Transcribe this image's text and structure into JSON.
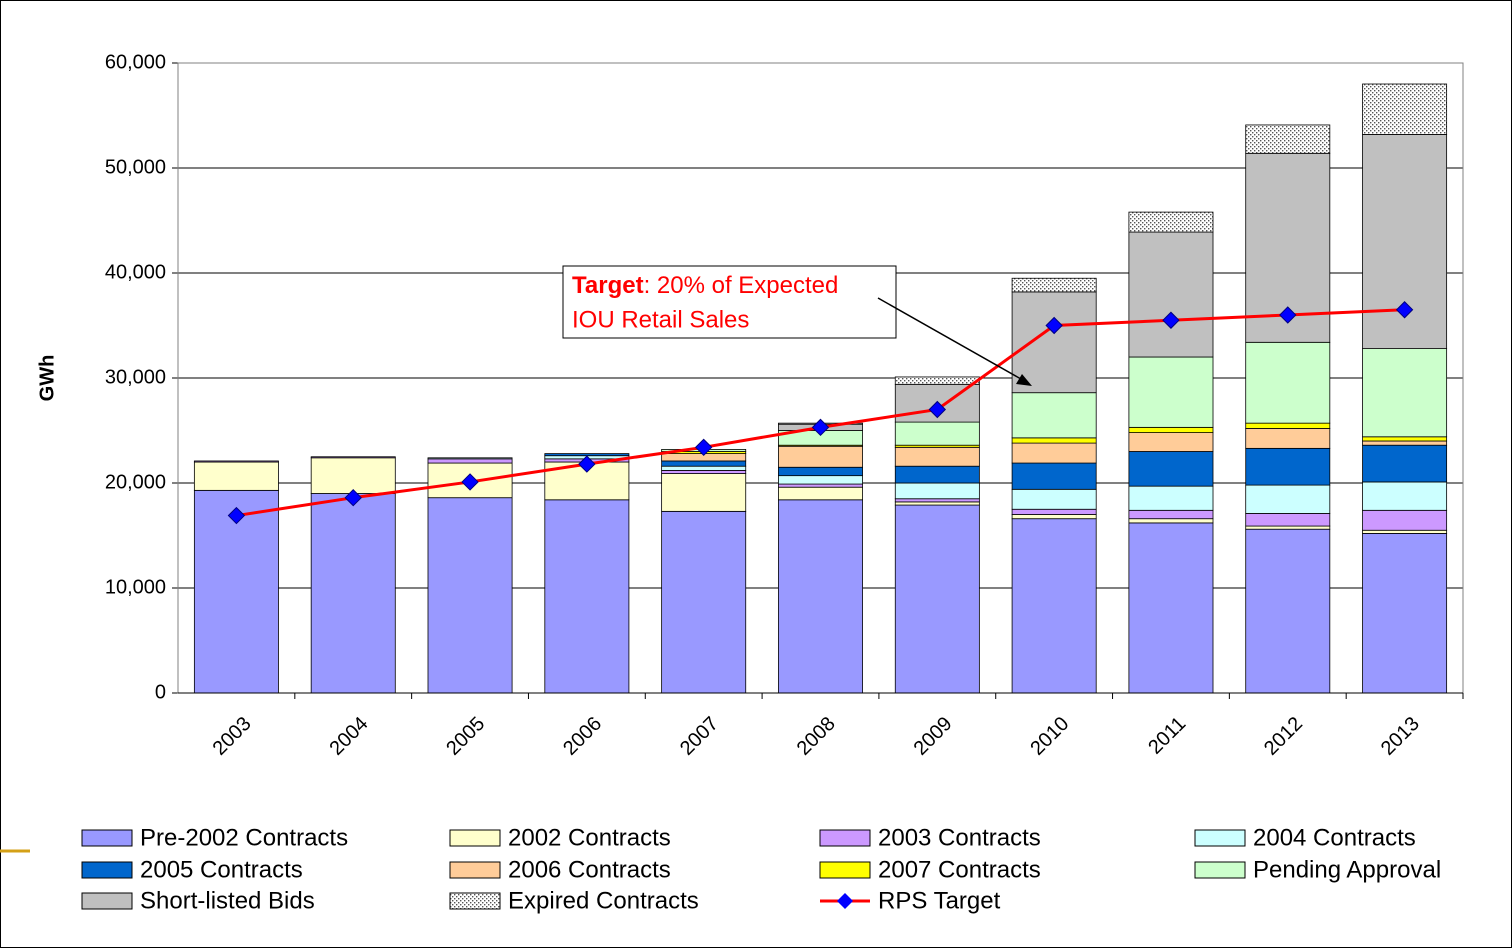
{
  "chart_data": {
    "type": "bar",
    "stacked": true,
    "y_label": "GWh",
    "categories": [
      "2003",
      "2004",
      "2005",
      "2006",
      "2007",
      "2008",
      "2009",
      "2010",
      "2011",
      "2012",
      "2013"
    ],
    "ylim": [
      0,
      60000
    ],
    "yticks": [
      {
        "value": 0,
        "label": "0"
      },
      {
        "value": 10000,
        "label": "10,000"
      },
      {
        "value": 20000,
        "label": "20,000"
      },
      {
        "value": 30000,
        "label": "30,000"
      },
      {
        "value": 40000,
        "label": "40,000"
      },
      {
        "value": 50000,
        "label": "50,000"
      },
      {
        "value": 60000,
        "label": "60,000"
      }
    ],
    "grid": true,
    "series": [
      {
        "name": "Pre-2002 Contracts",
        "color": "#9999ff",
        "values": [
          19300,
          19000,
          18600,
          18400,
          17300,
          18400,
          17900,
          16600,
          16200,
          15600,
          15200
        ]
      },
      {
        "name": "2002 Contracts",
        "color": "#ffffcc",
        "values": [
          2700,
          3400,
          3300,
          3600,
          3600,
          1200,
          300,
          400,
          400,
          300,
          300
        ]
      },
      {
        "name": "2003 Contracts",
        "color": "#cc99ff",
        "values": [
          100,
          100,
          400,
          300,
          300,
          300,
          300,
          500,
          800,
          1200,
          1900
        ]
      },
      {
        "name": "2004 Contracts",
        "color": "#ccffff",
        "values": [
          0,
          0,
          100,
          300,
          400,
          800,
          1500,
          1900,
          2300,
          2700,
          2700
        ]
      },
      {
        "name": "2005 Contracts",
        "color": "#0066cc",
        "values": [
          0,
          0,
          0,
          200,
          500,
          800,
          1600,
          2500,
          3300,
          3500,
          3500
        ]
      },
      {
        "name": "2006 Contracts",
        "color": "#ffcc99",
        "values": [
          0,
          0,
          0,
          0,
          700,
          2000,
          1800,
          1900,
          1800,
          1900,
          400
        ]
      },
      {
        "name": "2007 Contracts",
        "color": "#ffff00",
        "values": [
          0,
          0,
          0,
          0,
          200,
          100,
          200,
          500,
          500,
          500,
          400
        ]
      },
      {
        "name": "Pending Approval",
        "color": "#ccffcc",
        "values": [
          0,
          0,
          0,
          0,
          200,
          1400,
          2200,
          4300,
          6700,
          7700,
          8400
        ]
      },
      {
        "name": "Short-listed Bids",
        "color": "#c0c0c0",
        "values": [
          0,
          0,
          0,
          0,
          0,
          600,
          3600,
          9600,
          11900,
          18000,
          20400
        ]
      },
      {
        "name": "Expired Contracts",
        "color": "#ffffff",
        "pattern": "dots",
        "values": [
          0,
          0,
          0,
          0,
          0,
          100,
          700,
          1300,
          1900,
          2700,
          4800
        ]
      },
      {
        "name": "RPS Target",
        "type": "line",
        "color": "#ff0000",
        "marker_color": "#0000ff",
        "values": [
          16900,
          18600,
          20100,
          21800,
          23400,
          25300,
          27000,
          35000,
          35500,
          36000,
          36500
        ]
      }
    ],
    "annotation": {
      "bold": "Target",
      "text": ": 20% of Expected",
      "line2": "IOU Retail Sales"
    }
  }
}
